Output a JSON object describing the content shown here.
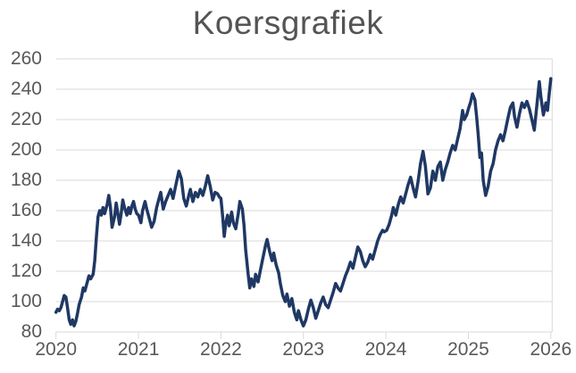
{
  "title": "Koersgrafiek",
  "colors": {
    "line": "#1f3864",
    "grid": "#d9d9d9",
    "axis_line": "#d9d9d9",
    "tick_text": "#595959",
    "title_text": "#545454",
    "background": "#ffffff"
  },
  "chart_data": {
    "type": "line",
    "title": "Koersgrafiek",
    "xlabel": "",
    "ylabel": "",
    "xlim": [
      2020,
      2026.05
    ],
    "ylim": [
      80,
      260
    ],
    "x_ticks": [
      2020,
      2021,
      2022,
      2023,
      2024,
      2025,
      2026
    ],
    "y_ticks": [
      80,
      100,
      120,
      140,
      160,
      180,
      200,
      220,
      240,
      260
    ],
    "grid": "horizontal",
    "legend_position": "none",
    "points": [
      [
        2020.0,
        93
      ],
      [
        2020.02,
        95
      ],
      [
        2020.04,
        94
      ],
      [
        2020.06,
        96
      ],
      [
        2020.08,
        100
      ],
      [
        2020.1,
        104
      ],
      [
        2020.12,
        103
      ],
      [
        2020.14,
        96
      ],
      [
        2020.16,
        88
      ],
      [
        2020.18,
        85
      ],
      [
        2020.2,
        88
      ],
      [
        2020.22,
        84
      ],
      [
        2020.24,
        87
      ],
      [
        2020.26,
        92
      ],
      [
        2020.28,
        98
      ],
      [
        2020.31,
        103
      ],
      [
        2020.33,
        109
      ],
      [
        2020.35,
        107
      ],
      [
        2020.38,
        113
      ],
      [
        2020.4,
        117
      ],
      [
        2020.42,
        115
      ],
      [
        2020.45,
        118
      ],
      [
        2020.47,
        127
      ],
      [
        2020.49,
        143
      ],
      [
        2020.51,
        156
      ],
      [
        2020.53,
        160
      ],
      [
        2020.55,
        157
      ],
      [
        2020.57,
        162
      ],
      [
        2020.59,
        158
      ],
      [
        2020.62,
        164
      ],
      [
        2020.64,
        170
      ],
      [
        2020.66,
        162
      ],
      [
        2020.68,
        149
      ],
      [
        2020.71,
        156
      ],
      [
        2020.73,
        165
      ],
      [
        2020.75,
        158
      ],
      [
        2020.77,
        151
      ],
      [
        2020.79,
        158
      ],
      [
        2020.81,
        167
      ],
      [
        2020.83,
        162
      ],
      [
        2020.86,
        157
      ],
      [
        2020.88,
        162
      ],
      [
        2020.9,
        158
      ],
      [
        2020.92,
        163
      ],
      [
        2020.94,
        166
      ],
      [
        2020.96,
        161
      ],
      [
        2020.98,
        158
      ],
      [
        2021.0,
        157
      ],
      [
        2021.03,
        152
      ],
      [
        2021.05,
        160
      ],
      [
        2021.08,
        166
      ],
      [
        2021.1,
        161
      ],
      [
        2021.13,
        155
      ],
      [
        2021.16,
        149
      ],
      [
        2021.19,
        153
      ],
      [
        2021.22,
        162
      ],
      [
        2021.25,
        168
      ],
      [
        2021.27,
        172
      ],
      [
        2021.3,
        161
      ],
      [
        2021.33,
        166
      ],
      [
        2021.36,
        170
      ],
      [
        2021.39,
        174
      ],
      [
        2021.42,
        168
      ],
      [
        2021.45,
        176
      ],
      [
        2021.49,
        186
      ],
      [
        2021.52,
        181
      ],
      [
        2021.55,
        168
      ],
      [
        2021.58,
        163
      ],
      [
        2021.61,
        170
      ],
      [
        2021.63,
        174
      ],
      [
        2021.66,
        166
      ],
      [
        2021.69,
        172
      ],
      [
        2021.72,
        169
      ],
      [
        2021.75,
        174
      ],
      [
        2021.78,
        170
      ],
      [
        2021.81,
        176
      ],
      [
        2021.84,
        183
      ],
      [
        2021.87,
        176
      ],
      [
        2021.9,
        167
      ],
      [
        2021.93,
        172
      ],
      [
        2021.96,
        171
      ],
      [
        2021.98,
        169
      ],
      [
        2022.0,
        168
      ],
      [
        2022.02,
        157
      ],
      [
        2022.04,
        143
      ],
      [
        2022.06,
        152
      ],
      [
        2022.08,
        157
      ],
      [
        2022.1,
        150
      ],
      [
        2022.13,
        159
      ],
      [
        2022.15,
        152
      ],
      [
        2022.18,
        148
      ],
      [
        2022.21,
        158
      ],
      [
        2022.23,
        166
      ],
      [
        2022.26,
        161
      ],
      [
        2022.28,
        150
      ],
      [
        2022.3,
        134
      ],
      [
        2022.33,
        118
      ],
      [
        2022.35,
        109
      ],
      [
        2022.37,
        115
      ],
      [
        2022.4,
        110
      ],
      [
        2022.42,
        118
      ],
      [
        2022.45,
        113
      ],
      [
        2022.48,
        121
      ],
      [
        2022.51,
        129
      ],
      [
        2022.54,
        137
      ],
      [
        2022.56,
        141
      ],
      [
        2022.59,
        133
      ],
      [
        2022.62,
        127
      ],
      [
        2022.64,
        132
      ],
      [
        2022.67,
        124
      ],
      [
        2022.7,
        119
      ],
      [
        2022.72,
        112
      ],
      [
        2022.75,
        104
      ],
      [
        2022.78,
        100
      ],
      [
        2022.8,
        105
      ],
      [
        2022.83,
        97
      ],
      [
        2022.86,
        102
      ],
      [
        2022.89,
        93
      ],
      [
        2022.92,
        88
      ],
      [
        2022.94,
        94
      ],
      [
        2022.97,
        88
      ],
      [
        2023.0,
        84
      ],
      [
        2023.03,
        88
      ],
      [
        2023.06,
        95
      ],
      [
        2023.09,
        101
      ],
      [
        2023.12,
        96
      ],
      [
        2023.15,
        89
      ],
      [
        2023.18,
        94
      ],
      [
        2023.21,
        99
      ],
      [
        2023.24,
        103
      ],
      [
        2023.27,
        98
      ],
      [
        2023.3,
        96
      ],
      [
        2023.33,
        101
      ],
      [
        2023.36,
        106
      ],
      [
        2023.39,
        112
      ],
      [
        2023.42,
        109
      ],
      [
        2023.45,
        107
      ],
      [
        2023.48,
        112
      ],
      [
        2023.51,
        117
      ],
      [
        2023.54,
        121
      ],
      [
        2023.57,
        126
      ],
      [
        2023.6,
        122
      ],
      [
        2023.63,
        129
      ],
      [
        2023.66,
        136
      ],
      [
        2023.69,
        133
      ],
      [
        2023.72,
        127
      ],
      [
        2023.75,
        123
      ],
      [
        2023.78,
        126
      ],
      [
        2023.81,
        131
      ],
      [
        2023.84,
        128
      ],
      [
        2023.87,
        134
      ],
      [
        2023.9,
        140
      ],
      [
        2023.93,
        144
      ],
      [
        2023.96,
        147
      ],
      [
        2023.98,
        146
      ],
      [
        2024.01,
        147
      ],
      [
        2024.04,
        151
      ],
      [
        2024.07,
        157
      ],
      [
        2024.09,
        162
      ],
      [
        2024.12,
        157
      ],
      [
        2024.15,
        164
      ],
      [
        2024.18,
        169
      ],
      [
        2024.21,
        165
      ],
      [
        2024.24,
        171
      ],
      [
        2024.27,
        177
      ],
      [
        2024.3,
        182
      ],
      [
        2024.33,
        175
      ],
      [
        2024.36,
        169
      ],
      [
        2024.39,
        179
      ],
      [
        2024.42,
        191
      ],
      [
        2024.45,
        199
      ],
      [
        2024.48,
        189
      ],
      [
        2024.51,
        171
      ],
      [
        2024.54,
        175
      ],
      [
        2024.57,
        186
      ],
      [
        2024.6,
        180
      ],
      [
        2024.63,
        189
      ],
      [
        2024.66,
        192
      ],
      [
        2024.69,
        180
      ],
      [
        2024.72,
        187
      ],
      [
        2024.75,
        192
      ],
      [
        2024.78,
        198
      ],
      [
        2024.81,
        203
      ],
      [
        2024.84,
        200
      ],
      [
        2024.87,
        207
      ],
      [
        2024.9,
        214
      ],
      [
        2024.93,
        226
      ],
      [
        2024.95,
        220
      ],
      [
        2024.98,
        223
      ],
      [
        2025.0,
        227
      ],
      [
        2025.03,
        232
      ],
      [
        2025.05,
        237
      ],
      [
        2025.08,
        233
      ],
      [
        2025.1,
        222
      ],
      [
        2025.12,
        210
      ],
      [
        2025.14,
        195
      ],
      [
        2025.16,
        198
      ],
      [
        2025.18,
        180
      ],
      [
        2025.21,
        170
      ],
      [
        2025.24,
        176
      ],
      [
        2025.27,
        186
      ],
      [
        2025.3,
        191
      ],
      [
        2025.33,
        200
      ],
      [
        2025.36,
        206
      ],
      [
        2025.39,
        210
      ],
      [
        2025.42,
        206
      ],
      [
        2025.45,
        213
      ],
      [
        2025.48,
        221
      ],
      [
        2025.51,
        228
      ],
      [
        2025.54,
        231
      ],
      [
        2025.56,
        222
      ],
      [
        2025.59,
        215
      ],
      [
        2025.62,
        224
      ],
      [
        2025.65,
        231
      ],
      [
        2025.68,
        228
      ],
      [
        2025.71,
        232
      ],
      [
        2025.74,
        227
      ],
      [
        2025.77,
        220
      ],
      [
        2025.8,
        213
      ],
      [
        2025.83,
        229
      ],
      [
        2025.86,
        245
      ],
      [
        2025.88,
        235
      ],
      [
        2025.91,
        223
      ],
      [
        2025.94,
        231
      ],
      [
        2025.96,
        226
      ],
      [
        2025.98,
        237
      ],
      [
        2026.0,
        247
      ]
    ]
  }
}
